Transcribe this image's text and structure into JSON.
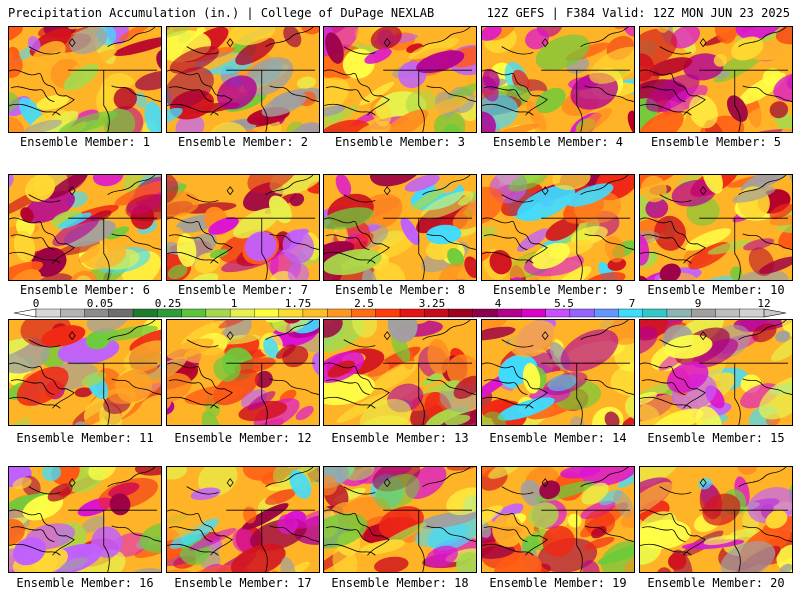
{
  "header": {
    "left": "Precipitation Accumulation (in.) | College of DuPage NEXLAB",
    "right": "12Z GEFS | F384 Valid: 12Z MON JUN 23 2025"
  },
  "colorbar": {
    "labels": [
      "0",
      "0.05",
      "0.25",
      "1",
      "1.75",
      "2.5",
      "3.25",
      "4",
      "5.5",
      "7",
      "9",
      "12"
    ],
    "colors": [
      "#d8d8d8",
      "#b4b4b4",
      "#8c8c8c",
      "#6e6e6e",
      "#1e7d2d",
      "#2e9c37",
      "#5cc43c",
      "#a5d84c",
      "#e6f04e",
      "#ffff3c",
      "#ffdc32",
      "#ffbe28",
      "#ff961e",
      "#ff6e14",
      "#ff3c0a",
      "#e61414",
      "#c80a1e",
      "#a0001e",
      "#8c0050",
      "#b4008c",
      "#dc00c8",
      "#c850ff",
      "#9664ff",
      "#6496ff",
      "#3cdcff",
      "#32c8c8",
      "#8cb4b4",
      "#a0a0a0",
      "#bebebe",
      "#d2d2d2"
    ]
  },
  "panels": [
    {
      "label": "Ensemble Member: 1"
    },
    {
      "label": "Ensemble Member: 2"
    },
    {
      "label": "Ensemble Member: 3"
    },
    {
      "label": "Ensemble Member: 4"
    },
    {
      "label": "Ensemble Member: 5"
    },
    {
      "label": "Ensemble Member: 6"
    },
    {
      "label": "Ensemble Member: 7"
    },
    {
      "label": "Ensemble Member: 8"
    },
    {
      "label": "Ensemble Member: 9"
    },
    {
      "label": "Ensemble Member: 10"
    },
    {
      "label": "Ensemble Member: 11"
    },
    {
      "label": "Ensemble Member: 12"
    },
    {
      "label": "Ensemble Member: 13"
    },
    {
      "label": "Ensemble Member: 14"
    },
    {
      "label": "Ensemble Member: 15"
    },
    {
      "label": "Ensemble Member: 16"
    },
    {
      "label": "Ensemble Member: 17"
    },
    {
      "label": "Ensemble Member: 18"
    },
    {
      "label": "Ensemble Member: 19"
    },
    {
      "label": "Ensemble Member: 20"
    }
  ]
}
